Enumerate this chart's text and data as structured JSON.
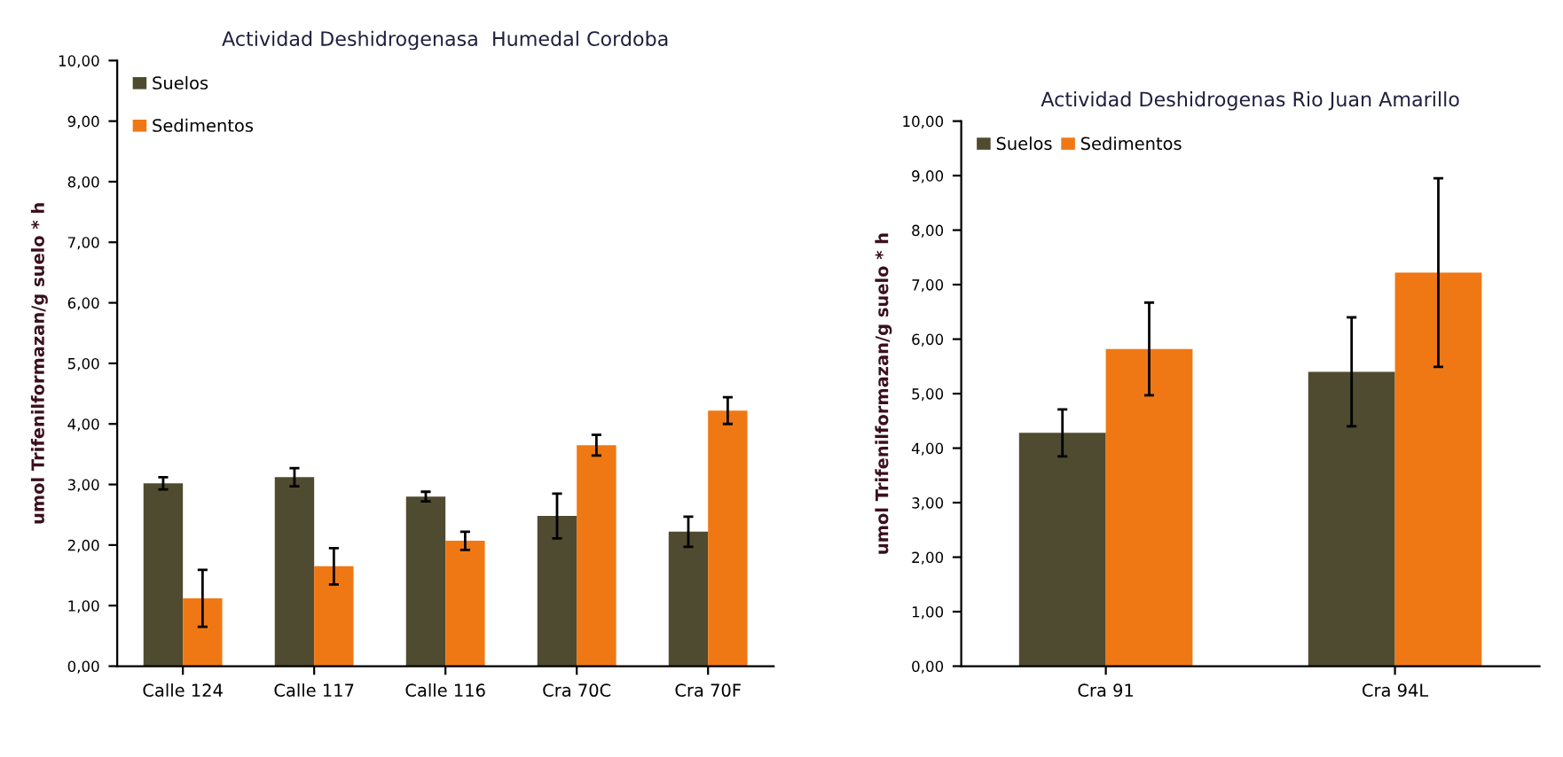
{
  "chart_data": [
    {
      "type": "bar",
      "title": "Actividad Deshidrogenasa  Humedal Cordoba",
      "ylabel": "umol Trifenilformazan/g suelo * h",
      "categories": [
        "Calle 124",
        "Calle 117",
        "Calle 116",
        "Cra 70C",
        "Cra 70F"
      ],
      "series": [
        {
          "name": "Suelos",
          "color": "#4f4b30",
          "values": [
            3.02,
            3.12,
            2.8,
            2.48,
            2.22
          ],
          "errors": [
            0.1,
            0.15,
            0.08,
            0.37,
            0.25
          ]
        },
        {
          "name": "Sedimentos",
          "color": "#f07814",
          "values": [
            1.12,
            1.65,
            2.07,
            3.65,
            4.22
          ],
          "errors": [
            0.47,
            0.3,
            0.15,
            0.17,
            0.22
          ]
        }
      ],
      "ylim": [
        0,
        10
      ],
      "yticks": [
        {
          "value": 0,
          "label": "0,00"
        },
        {
          "value": 1,
          "label": "1,00"
        },
        {
          "value": 2,
          "label": "2,00"
        },
        {
          "value": 3,
          "label": "3,00"
        },
        {
          "value": 4,
          "label": "4,00"
        },
        {
          "value": 5,
          "label": "5,00"
        },
        {
          "value": 6,
          "label": "6,00"
        },
        {
          "value": 7,
          "label": "7,00"
        },
        {
          "value": 8,
          "label": "8,00"
        },
        {
          "value": 9,
          "label": "9,00"
        },
        {
          "value": 10,
          "label": "10,00"
        }
      ],
      "legend": "top left"
    },
    {
      "type": "bar",
      "title": "Actividad Deshidrogenas Rio Juan Amarillo",
      "ylabel": "umol Trifenilformazan/g suelo * h",
      "categories": [
        "Cra 91",
        "Cra 94L"
      ],
      "series": [
        {
          "name": "Suelos",
          "color": "#4f4b30",
          "values": [
            4.28,
            5.4
          ],
          "errors": [
            0.43,
            1.0
          ]
        },
        {
          "name": "Sedimentos",
          "color": "#f07814",
          "values": [
            5.82,
            7.22
          ],
          "errors": [
            0.85,
            1.73
          ]
        }
      ],
      "ylim": [
        0,
        10
      ],
      "yticks": [
        {
          "value": 0,
          "label": "0,00"
        },
        {
          "value": 1,
          "label": "1,00"
        },
        {
          "value": 2,
          "label": "2,00"
        },
        {
          "value": 3,
          "label": "3,00"
        },
        {
          "value": 4,
          "label": "4,00"
        },
        {
          "value": 5,
          "label": "5,00"
        },
        {
          "value": 6,
          "label": "6,00"
        },
        {
          "value": 7,
          "label": "7,00"
        },
        {
          "value": 8,
          "label": "8,00"
        },
        {
          "value": 9,
          "label": "9,00"
        },
        {
          "value": 10,
          "label": "10,00"
        }
      ],
      "legend": "top left"
    }
  ]
}
